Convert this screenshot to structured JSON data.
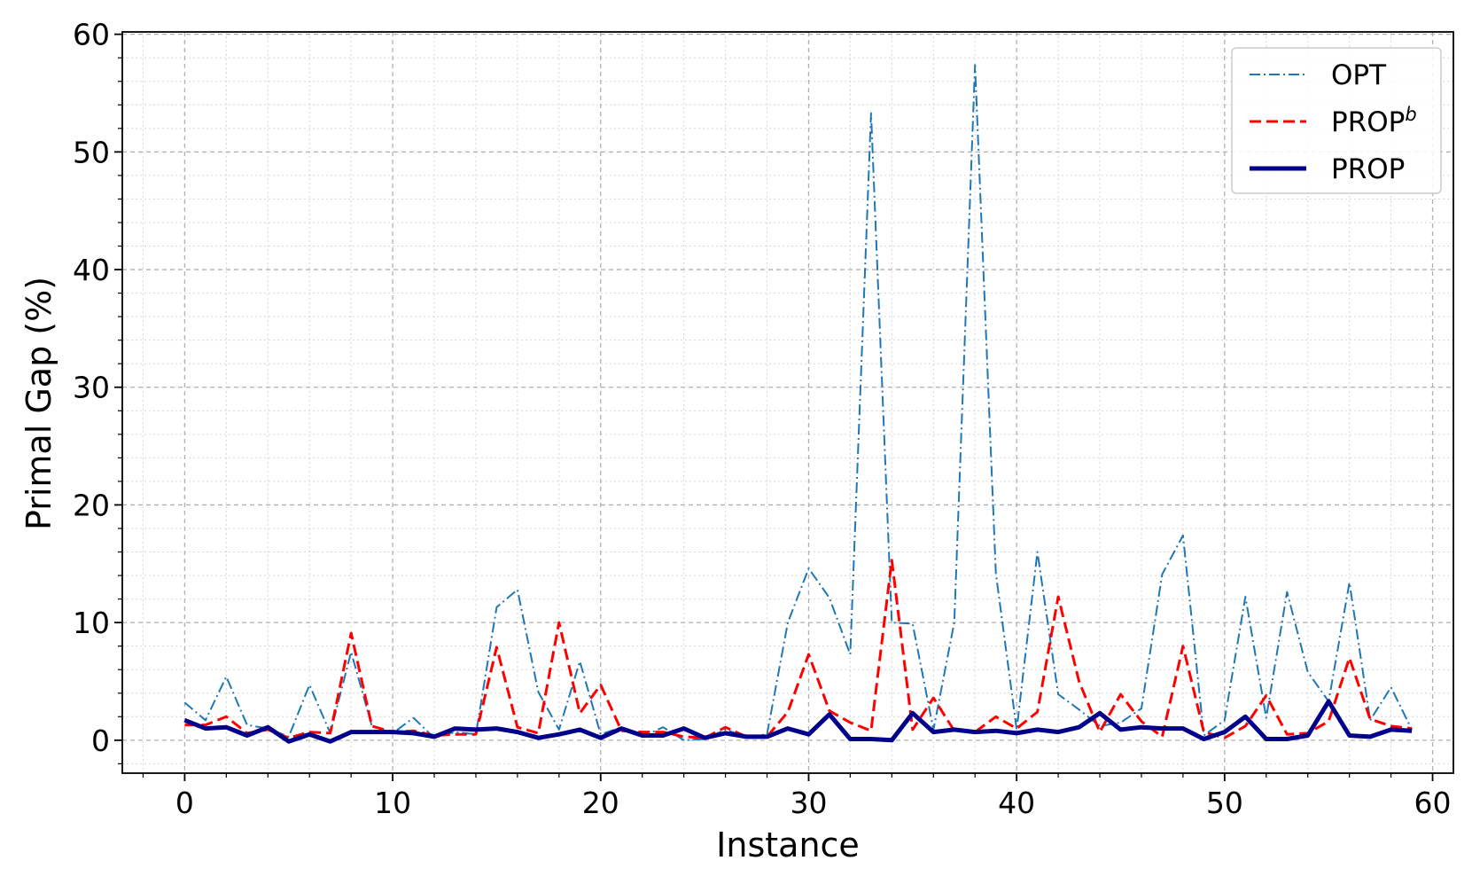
{
  "chart_data": {
    "type": "line",
    "title": "",
    "xlabel": "Instance",
    "ylabel": "Primal Gap (%)",
    "xlim": [
      -3,
      61
    ],
    "ylim": [
      -2.8,
      60.2
    ],
    "xticks": [
      0,
      10,
      20,
      30,
      40,
      50,
      60
    ],
    "yticks": [
      0,
      10,
      20,
      30,
      40,
      50,
      60
    ],
    "grid": true,
    "minor_grid": true,
    "legend_position": "top-right",
    "x": [
      0,
      1,
      2,
      3,
      4,
      5,
      6,
      7,
      8,
      9,
      10,
      11,
      12,
      13,
      14,
      15,
      16,
      17,
      18,
      19,
      20,
      21,
      22,
      23,
      24,
      25,
      26,
      27,
      28,
      29,
      30,
      31,
      32,
      33,
      34,
      35,
      36,
      37,
      38,
      39,
      40,
      41,
      42,
      43,
      44,
      45,
      46,
      47,
      48,
      49,
      50,
      51,
      52,
      53,
      54,
      55,
      56,
      57,
      58,
      59
    ],
    "series": [
      {
        "name": "OPT",
        "color": "#1f77b4",
        "style": "dashdot",
        "values": [
          3.2,
          1.7,
          5.4,
          1.3,
          1.0,
          0.3,
          4.7,
          0.6,
          7.5,
          1.2,
          0.6,
          1.9,
          0.2,
          0.7,
          0.5,
          11.3,
          12.8,
          4.1,
          0.9,
          6.7,
          0.5,
          1.1,
          0.3,
          1.1,
          0.0,
          0.1,
          0.9,
          0.3,
          0.5,
          10.0,
          14.6,
          12.1,
          7.3,
          53.3,
          10.0,
          9.9,
          0.9,
          10.0,
          57.4,
          14.2,
          0.9,
          16.0,
          3.9,
          2.6,
          1.2,
          1.5,
          2.7,
          14.1,
          17.4,
          0.4,
          1.7,
          12.2,
          1.9,
          12.6,
          5.8,
          3.3,
          13.4,
          1.7,
          4.5,
          0.9
        ]
      },
      {
        "name": "PROP",
        "name_sup": "b",
        "color": "#ff0000",
        "style": "dashed",
        "values": [
          1.3,
          1.3,
          2.0,
          0.6,
          0.9,
          0.2,
          0.7,
          0.6,
          9.1,
          1.2,
          0.7,
          0.8,
          0.4,
          0.5,
          0.5,
          7.9,
          1.1,
          0.6,
          10.0,
          2.3,
          4.7,
          0.8,
          0.7,
          0.7,
          0.3,
          0.2,
          1.1,
          0.3,
          0.3,
          2.4,
          7.3,
          2.5,
          1.5,
          0.8,
          15.3,
          0.9,
          3.6,
          0.8,
          0.7,
          2.0,
          1.0,
          2.4,
          12.2,
          5.0,
          0.7,
          3.9,
          1.6,
          0.3,
          8.0,
          0.7,
          0.2,
          1.2,
          3.8,
          0.5,
          0.6,
          1.6,
          7.0,
          1.8,
          1.2,
          1.0
        ]
      },
      {
        "name": "PROP",
        "color": "#00008b",
        "style": "solid",
        "values": [
          1.7,
          1.0,
          1.1,
          0.4,
          1.1,
          -0.1,
          0.5,
          -0.1,
          0.7,
          0.7,
          0.7,
          0.6,
          0.3,
          1.0,
          0.9,
          1.0,
          0.7,
          0.2,
          0.5,
          0.9,
          0.2,
          1.0,
          0.4,
          0.4,
          1.0,
          0.2,
          0.6,
          0.3,
          0.3,
          1.0,
          0.5,
          2.2,
          0.1,
          0.1,
          0.0,
          2.3,
          0.7,
          0.9,
          0.7,
          0.8,
          0.6,
          0.9,
          0.7,
          1.1,
          2.3,
          0.9,
          1.1,
          1.0,
          1.0,
          0.1,
          0.7,
          2.0,
          0.1,
          0.1,
          0.4,
          3.3,
          0.4,
          0.3,
          0.9,
          0.8
        ]
      }
    ]
  }
}
